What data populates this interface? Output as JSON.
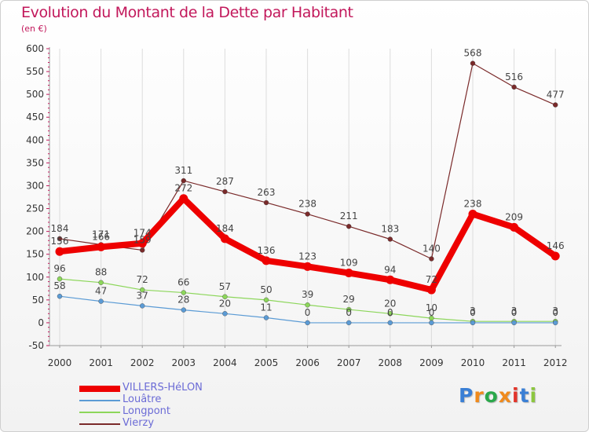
{
  "chart_data": {
    "type": "line",
    "title": "Evolution du Montant de la Dette par Habitant",
    "subtitle": "(en €)",
    "xlabel": "",
    "ylabel": "",
    "x": [
      "2000",
      "2001",
      "2002",
      "2003",
      "2004",
      "2005",
      "2006",
      "2007",
      "2008",
      "2009",
      "2010",
      "2011",
      "2012"
    ],
    "ylim": [
      -50,
      600
    ],
    "yticks": [
      -50,
      0,
      50,
      100,
      150,
      200,
      250,
      300,
      350,
      400,
      450,
      500,
      550,
      600
    ],
    "ytick_labels": [
      "-50",
      "0",
      "50",
      "100",
      "150",
      "200",
      "250",
      "300",
      "350",
      "400",
      "450",
      "500",
      "550",
      "600"
    ],
    "grid": "vertical",
    "legend_position": "bottom-left",
    "series": [
      {
        "name": "Vierzy",
        "color": "#7a2a2a",
        "values": [
          184,
          171,
          159,
          311,
          287,
          263,
          238,
          211,
          183,
          140,
          568,
          516,
          477
        ],
        "labels": [
          "184",
          "171",
          "159",
          "311",
          "287",
          "263",
          "238",
          "211",
          "183",
          "140",
          "568",
          "516",
          "477"
        ]
      },
      {
        "name": "Longpont",
        "color": "#8cd65a",
        "values": [
          96,
          88,
          72,
          66,
          57,
          50,
          39,
          29,
          20,
          10,
          3,
          3,
          3
        ],
        "labels": [
          "96",
          "88",
          "72",
          "66",
          "57",
          "50",
          "39",
          "29",
          "20",
          "10",
          "3",
          "3",
          "3"
        ]
      },
      {
        "name": "Louâtre",
        "color": "#5b9bd5",
        "values": [
          58,
          47,
          37,
          28,
          20,
          11,
          0,
          0,
          0,
          0,
          0,
          0,
          0
        ],
        "labels": [
          "58",
          "47",
          "37",
          "28",
          "20",
          "11",
          "0",
          "0",
          "0",
          "0",
          "0",
          "0",
          "0"
        ]
      },
      {
        "name": "VILLERS-HéLON",
        "color": "#ee0000",
        "values": [
          156,
          166,
          174,
          272,
          184,
          136,
          123,
          109,
          94,
          72,
          238,
          209,
          146
        ],
        "labels": [
          "156",
          "166",
          "174",
          "272",
          "184",
          "136",
          "123",
          "109",
          "94",
          "72",
          "238",
          "209",
          "146"
        ]
      }
    ]
  },
  "legend": [
    {
      "name": "VILLERS-HéLON",
      "color": "#ee0000"
    },
    {
      "name": "Louâtre",
      "color": "#5b9bd5"
    },
    {
      "name": "Longpont",
      "color": "#8cd65a"
    },
    {
      "name": "Vierzy",
      "color": "#7a2a2a"
    }
  ],
  "logo": {
    "text": "Proxiti",
    "colors": [
      "#3a7fd5",
      "#f08a1c",
      "#2aa84a",
      "#f08a1c",
      "#e2342a",
      "#3a7fd5",
      "#8cc63f"
    ]
  }
}
